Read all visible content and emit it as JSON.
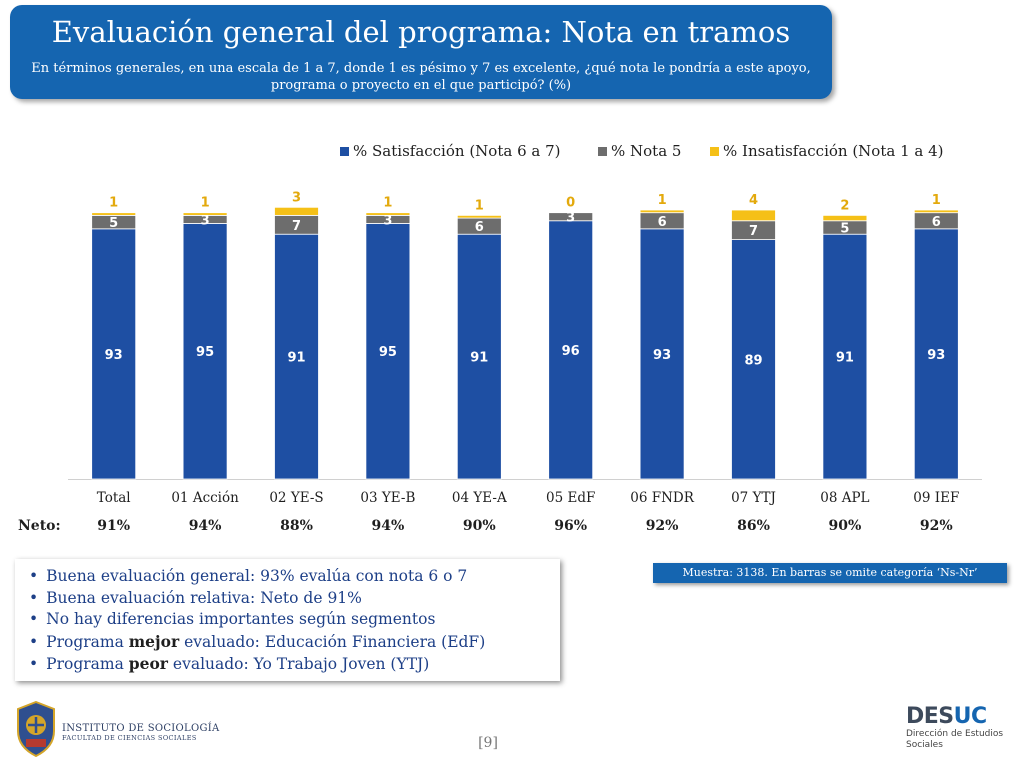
{
  "header": {
    "title": "Evaluación general del programa: Nota en tramos",
    "subtitle": "En términos generales, en una escala de 1 a 7, donde 1 es pésimo y 7 es excelente, ¿qué nota le pondría a este apoyo, programa o proyecto en el que participó? (%)"
  },
  "chart_data": {
    "type": "bar",
    "stacked": true,
    "categories": [
      "Total",
      "01 Acción",
      "02 YE-S",
      "03 YE-B",
      "04 YE-A",
      "05 EdF",
      "06 FNDR",
      "07 YTJ",
      "08 APL",
      "09 IEF"
    ],
    "series": [
      {
        "name": "% Satisfacción (Nota 6 a 7)",
        "color": "#1e4fa3",
        "values": [
          93,
          95,
          91,
          95,
          91,
          96,
          93,
          89,
          91,
          93
        ]
      },
      {
        "name": "% Nota 5",
        "color": "#6d6d6d",
        "values": [
          5,
          3,
          7,
          3,
          6,
          3,
          6,
          7,
          5,
          6
        ]
      },
      {
        "name": "% Insatisfacción (Nota 1 a 4)",
        "color": "#f5c017",
        "values": [
          1,
          1,
          3,
          1,
          1,
          0,
          1,
          4,
          2,
          1
        ]
      }
    ],
    "ylim": [
      0,
      100
    ],
    "legend_position": "top-right",
    "grid": false
  },
  "neto": {
    "label": "Neto:",
    "values": [
      "91%",
      "94%",
      "88%",
      "94%",
      "90%",
      "96%",
      "92%",
      "86%",
      "90%",
      "92%"
    ]
  },
  "findings": [
    {
      "pre": "Buena evaluación general: 93% evalúa con nota 6 o 7",
      "bold": "",
      "post": ""
    },
    {
      "pre": "Buena evaluación relativa: Neto de 91%",
      "bold": "",
      "post": ""
    },
    {
      "pre": "No hay diferencias importantes según segmentos",
      "bold": "",
      "post": ""
    },
    {
      "pre": "Programa ",
      "bold": "mejor",
      "post": " evaluado: Educación Financiera (EdF)"
    },
    {
      "pre": "Programa ",
      "bold": "peor",
      "post": " evaluado: Yo Trabajo Joven (YTJ)"
    }
  ],
  "sample_note": "Muestra: 3138. En barras se omite categoría ‘Ns-Nr’",
  "footer": {
    "institute_name": "INSTITUTO DE SOCIOLOGÍA",
    "institute_sub": "FACULTAD DE CIENCIAS SOCIALES",
    "page_number": "[9]",
    "brand_part1": "DES",
    "brand_part2": "UC",
    "brand_sub_line1": "Dirección de Estudios",
    "brand_sub_line2": "Sociales"
  }
}
